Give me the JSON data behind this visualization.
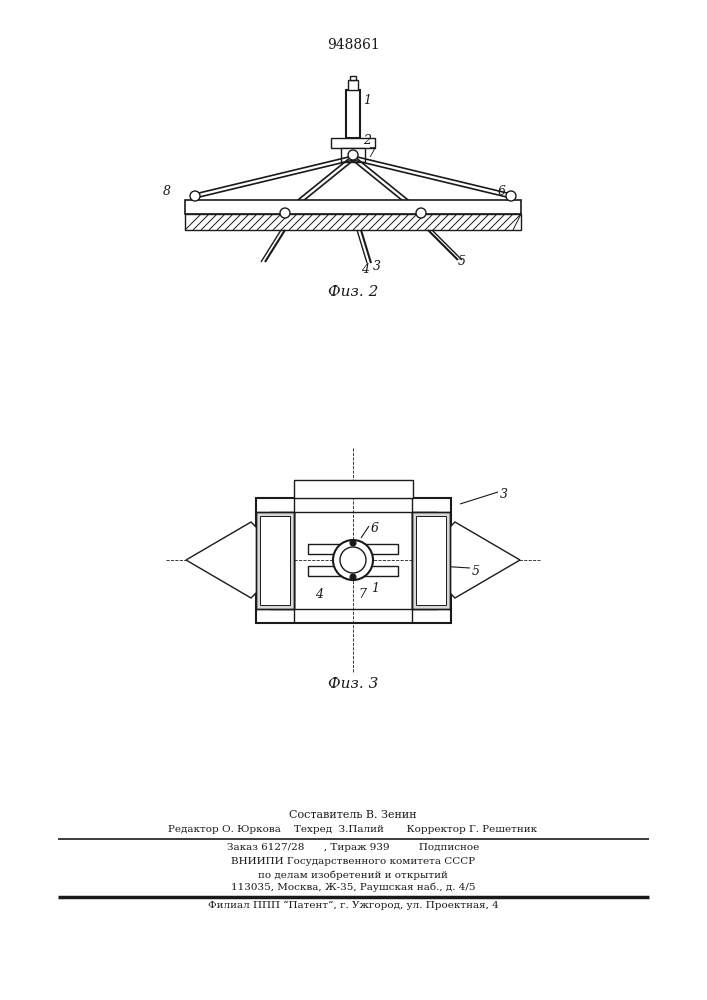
{
  "patent_number": "948861",
  "fig2_caption": "Физ. 2",
  "fig3_caption": "Физ. 3",
  "bg_color": "#ffffff",
  "line_color": "#1a1a1a",
  "footer_lines": [
    "Составитель В. Зенин",
    "Редактор О. Юркова    Техред  З.Палий       Корректор Г. Решетник",
    "Заказ 6127/28      , Тираж 939         Подписное",
    "ВНИИПИ Государственного комитета СССР",
    "по делам изобретений и открытий",
    "113035, Москва, Ж-35, Раушская наб., д. 4/5",
    "Филиал ППП “Патент”, г. Ужгород, ул. Проектная, 4"
  ]
}
